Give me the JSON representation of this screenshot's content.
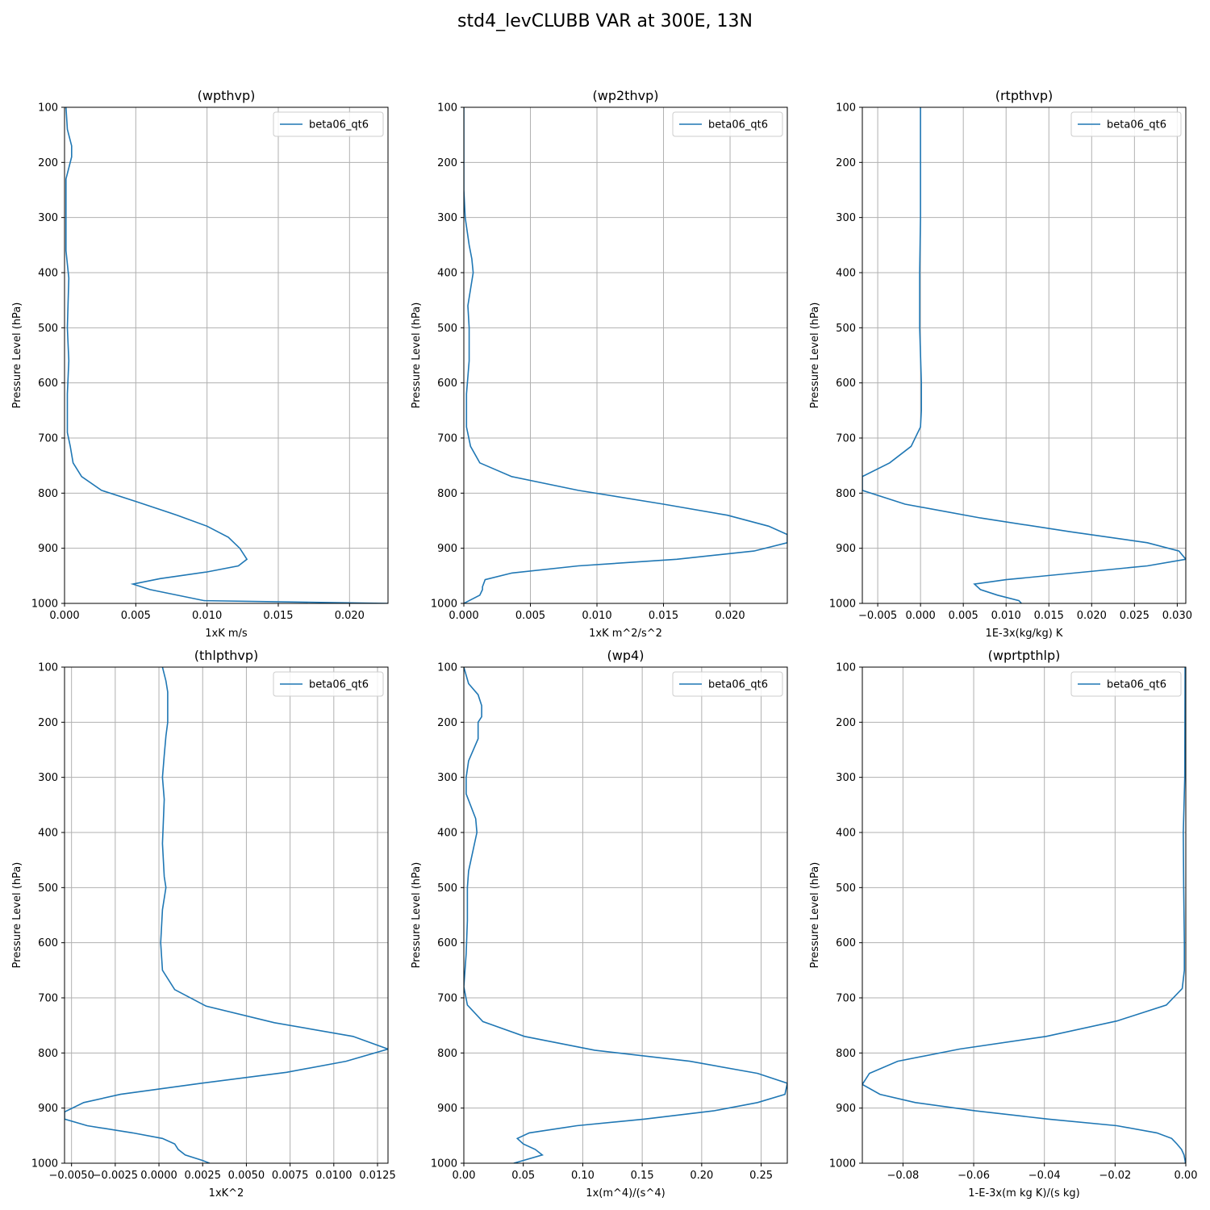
{
  "figure": {
    "title": "std4_levCLUBB VAR at 300E, 13N"
  },
  "style": {
    "line_color": "#1f77b4",
    "grid_color": "#b0b0b0",
    "axis_color": "#000000"
  },
  "chart_data": [
    {
      "type": "line",
      "title": "(wpthvp)",
      "xlabel": "1xK m/s",
      "ylabel": "Pressure Level (hPa)",
      "xlim": [
        0,
        0.0227
      ],
      "ylim": [
        1000,
        100
      ],
      "xticks": [
        "0.000",
        "0.005",
        "0.010",
        "0.015",
        "0.020"
      ],
      "xtick_values": [
        0,
        0.005,
        0.01,
        0.015,
        0.02
      ],
      "yticks": [
        100,
        200,
        300,
        400,
        500,
        600,
        700,
        800,
        900,
        1000
      ],
      "legend": "beta06_qt6",
      "series": [
        {
          "name": "beta06_qt6",
          "p": [
            100,
            140,
            170,
            190,
            230,
            300,
            360,
            410,
            500,
            560,
            620,
            690,
            715,
            745,
            770,
            795,
            815,
            840,
            860,
            880,
            900,
            920,
            932,
            943,
            955,
            965,
            975,
            995,
            1000
          ],
          "x": [
            0.0001,
            0.0002,
            0.0005,
            0.0005,
            0.0001,
            0.0001,
            0.0001,
            0.0003,
            0.0002,
            0.0003,
            0.0002,
            0.0002,
            0.0004,
            0.0006,
            0.0012,
            0.0026,
            0.005,
            0.0079,
            0.01,
            0.0115,
            0.0123,
            0.0128,
            0.0122,
            0.01,
            0.0067,
            0.0048,
            0.006,
            0.0098,
            0.0227
          ]
        }
      ]
    },
    {
      "type": "line",
      "title": "(wp2thvp)",
      "xlabel": "1xK m^2/s^2",
      "ylabel": "Pressure Level (hPa)",
      "xlim": [
        0,
        0.0243
      ],
      "ylim": [
        1000,
        100
      ],
      "xticks": [
        "0.000",
        "0.005",
        "0.010",
        "0.015",
        "0.020"
      ],
      "xtick_values": [
        0,
        0.005,
        0.01,
        0.015,
        0.02
      ],
      "yticks": [
        100,
        200,
        300,
        400,
        500,
        600,
        700,
        800,
        900,
        1000
      ],
      "legend": "beta06_qt6",
      "series": [
        {
          "name": "beta06_qt6",
          "p": [
            100,
            250,
            300,
            350,
            375,
            400,
            460,
            500,
            560,
            620,
            680,
            715,
            745,
            770,
            795,
            820,
            840,
            860,
            875,
            890,
            905,
            920,
            932,
            945,
            957,
            970,
            975,
            985,
            1000
          ],
          "x": [
            0.0,
            0.0,
            0.0001,
            0.0004,
            0.0006,
            0.0007,
            0.0003,
            0.0004,
            0.0004,
            0.0002,
            0.0002,
            0.0005,
            0.0012,
            0.0036,
            0.0086,
            0.015,
            0.0198,
            0.0229,
            0.0243,
            0.0243,
            0.0218,
            0.016,
            0.0086,
            0.0036,
            0.0016,
            0.0014,
            0.0014,
            0.0012,
            0.0
          ]
        }
      ]
    },
    {
      "type": "line",
      "title": "(rtpthvp)",
      "xlabel": "1E-3x(kg/kg) K",
      "ylabel": "Pressure Level (hPa)",
      "xlim": [
        -0.0068,
        0.031
      ],
      "ylim": [
        1000,
        100
      ],
      "xticks": [
        "−0.005",
        "0.000",
        "0.005",
        "0.010",
        "0.015",
        "0.020",
        "0.025",
        "0.030"
      ],
      "xtick_values": [
        -0.005,
        0,
        0.005,
        0.01,
        0.015,
        0.02,
        0.025,
        0.03
      ],
      "yticks": [
        100,
        200,
        300,
        400,
        500,
        600,
        700,
        800,
        900,
        1000
      ],
      "legend": "beta06_qt6",
      "series": [
        {
          "name": "beta06_qt6",
          "p": [
            100,
            200,
            300,
            400,
            500,
            600,
            650,
            680,
            715,
            745,
            770,
            795,
            820,
            845,
            870,
            890,
            905,
            920,
            932,
            957,
            965,
            975,
            985,
            995,
            1000
          ],
          "x": [
            0.0,
            0.0,
            0.0,
            -0.0001,
            -0.0001,
            0.0001,
            0.0001,
            0.0,
            -0.0011,
            -0.0036,
            -0.0068,
            -0.0068,
            -0.0018,
            0.007,
            0.0175,
            0.0265,
            0.0302,
            0.031,
            0.0265,
            0.01,
            0.0063,
            0.007,
            0.009,
            0.0115,
            0.0118
          ]
        }
      ]
    },
    {
      "type": "line",
      "title": "(thlpthvp)",
      "xlabel": "1xK^2",
      "ylabel": "Pressure Level (hPa)",
      "xlim": [
        -0.0054,
        0.0131
      ],
      "ylim": [
        1000,
        100
      ],
      "xticks": [
        "−0.0050",
        "−0.0025",
        "0.0000",
        "0.0025",
        "0.0050",
        "0.0075",
        "0.0100",
        "0.0125"
      ],
      "xtick_values": [
        -0.005,
        -0.0025,
        0,
        0.0025,
        0.005,
        0.0075,
        0.01,
        0.0125
      ],
      "yticks": [
        100,
        200,
        300,
        400,
        500,
        600,
        700,
        800,
        900,
        1000
      ],
      "legend": "beta06_qt6",
      "series": [
        {
          "name": "beta06_qt6",
          "p": [
            100,
            125,
            145,
            200,
            225,
            260,
            300,
            340,
            420,
            480,
            500,
            540,
            600,
            650,
            685,
            715,
            745,
            770,
            793,
            815,
            835,
            855,
            875,
            890,
            907,
            920,
            932,
            945,
            955,
            965,
            975,
            985,
            995,
            1000
          ],
          "x": [
            0.0002,
            0.0004,
            0.0005,
            0.0005,
            0.0004,
            0.0003,
            0.0002,
            0.0003,
            0.0002,
            0.0003,
            0.0004,
            0.0002,
            0.0001,
            0.0002,
            0.0009,
            0.0027,
            0.0066,
            0.0111,
            0.0131,
            0.0107,
            0.0073,
            0.0024,
            -0.0022,
            -0.0043,
            -0.0054,
            -0.0054,
            -0.0041,
            -0.0015,
            0.0002,
            0.0009,
            0.0011,
            0.0015,
            0.0025,
            0.0029
          ]
        }
      ]
    },
    {
      "type": "line",
      "title": "(wp4)",
      "xlabel": "1x(m^4)/(s^4)",
      "ylabel": "Pressure Level (hPa)",
      "xlim": [
        0,
        0.272
      ],
      "ylim": [
        1000,
        100
      ],
      "xticks": [
        "0.00",
        "0.05",
        "0.10",
        "0.15",
        "0.20",
        "0.25"
      ],
      "xtick_values": [
        0,
        0.05,
        0.1,
        0.15,
        0.2,
        0.25
      ],
      "yticks": [
        100,
        200,
        300,
        400,
        500,
        600,
        700,
        800,
        900,
        1000
      ],
      "legend": "beta06_qt6",
      "series": [
        {
          "name": "beta06_qt6",
          "p": [
            100,
            130,
            150,
            170,
            190,
            200,
            230,
            270,
            300,
            330,
            375,
            400,
            470,
            500,
            560,
            620,
            680,
            713,
            743,
            770,
            795,
            815,
            837,
            855,
            875,
            890,
            905,
            920,
            932,
            945,
            955,
            965,
            975,
            985,
            1000
          ],
          "x": [
            0.0,
            0.004,
            0.012,
            0.015,
            0.015,
            0.012,
            0.012,
            0.004,
            0.002,
            0.002,
            0.01,
            0.011,
            0.004,
            0.003,
            0.003,
            0.002,
            0.0,
            0.003,
            0.016,
            0.051,
            0.11,
            0.19,
            0.247,
            0.272,
            0.27,
            0.247,
            0.21,
            0.152,
            0.095,
            0.055,
            0.045,
            0.05,
            0.06,
            0.066,
            0.042
          ]
        }
      ]
    },
    {
      "type": "line",
      "title": "(wprtpthlp)",
      "xlabel": "1-E-3x(m kg K)/(s kg)",
      "ylabel": "Pressure Level (hPa)",
      "xlim": [
        -0.0915,
        0.0
      ],
      "ylim": [
        1000,
        100
      ],
      "xticks": [
        "−0.08",
        "−0.06",
        "−0.04",
        "−0.02",
        "0.00"
      ],
      "xtick_values": [
        -0.08,
        -0.06,
        -0.04,
        -0.02,
        0.0
      ],
      "yticks": [
        100,
        200,
        300,
        400,
        500,
        600,
        700,
        800,
        900,
        1000
      ],
      "legend": "beta06_qt6",
      "series": [
        {
          "name": "beta06_qt6",
          "p": [
            100,
            300,
            350,
            400,
            500,
            600,
            650,
            683,
            713,
            742,
            770,
            793,
            815,
            837,
            857,
            875,
            890,
            905,
            920,
            932,
            945,
            955,
            965,
            975,
            985,
            995,
            1000
          ],
          "x": [
            -0.0002,
            -0.0003,
            -0.0005,
            -0.0007,
            -0.0006,
            -0.0004,
            -0.0004,
            -0.001,
            -0.0055,
            -0.0195,
            -0.0395,
            -0.064,
            -0.0815,
            -0.0895,
            -0.0915,
            -0.0865,
            -0.0765,
            -0.0595,
            -0.039,
            -0.0195,
            -0.0082,
            -0.004,
            -0.0025,
            -0.0012,
            -0.0005,
            -0.0002,
            -0.0001
          ]
        }
      ]
    }
  ]
}
